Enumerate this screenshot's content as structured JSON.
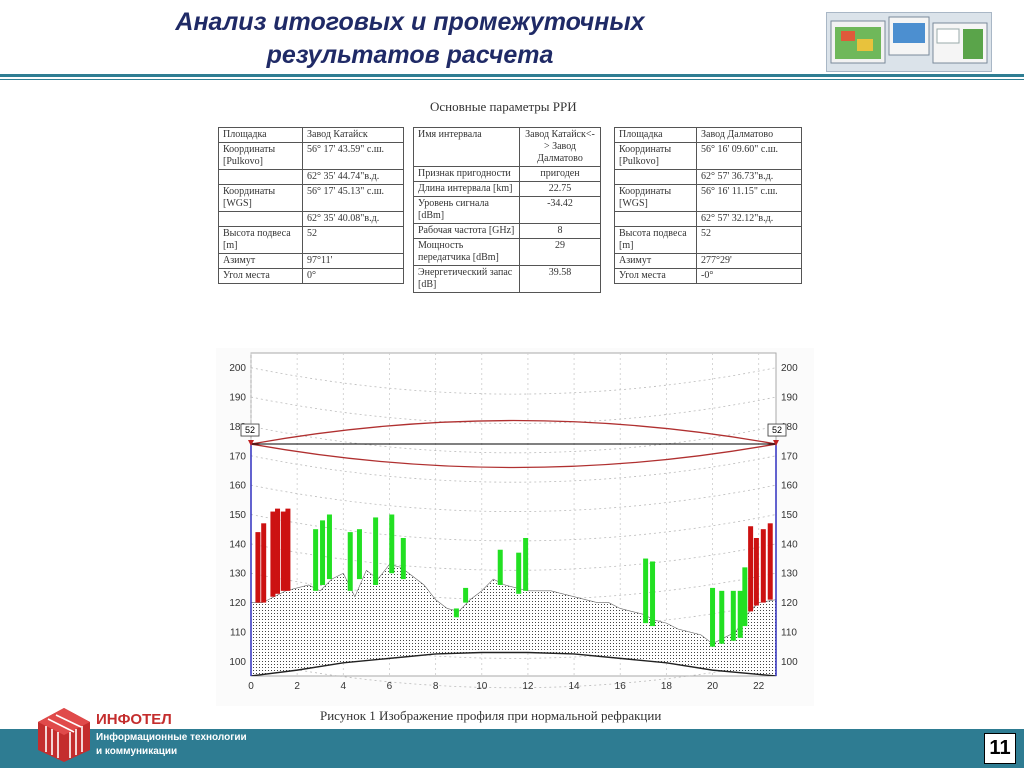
{
  "slide": {
    "title_line1": "Анализ итоговых и промежуточных",
    "title_line2": "результатов расчета",
    "page_number": "11"
  },
  "params": {
    "caption": "Основные параметры РРИ",
    "left": [
      [
        "Площадка",
        "Завод Катайск"
      ],
      [
        "Координаты [Pulkovo]",
        "56° 17' 43.59\" с.ш."
      ],
      [
        "",
        "62° 35' 44.74\"в.д."
      ],
      [
        "Координаты [WGS]",
        "56° 17' 45.13\" с.ш."
      ],
      [
        "",
        "62° 35' 40.08\"в.д."
      ],
      [
        "Высота подвеса [m]",
        "52"
      ],
      [
        "Азимут",
        "97°11'"
      ],
      [
        "Угол места",
        "0°"
      ]
    ],
    "middle": [
      [
        "Имя интервала",
        "Завод Катайск<-> Завод Далматово"
      ],
      [
        "Признак пригодности",
        "пригоден"
      ],
      [
        "Длина интервала [km]",
        "22.75"
      ],
      [
        "Уровень сигнала [dBm]",
        "-34.42"
      ],
      [
        "Рабочая частота [GHz]",
        "8"
      ],
      [
        "Мощность передатчика [dBm]",
        "29"
      ],
      [
        "Энергетический запас [dB]",
        "39.58"
      ]
    ],
    "right": [
      [
        "Площадка",
        "Завод Далматово"
      ],
      [
        "Координаты [Pulkovo]",
        "56° 16' 09.60\" с.ш."
      ],
      [
        "",
        "62° 57' 36.73\"в.д."
      ],
      [
        "Координаты [WGS]",
        "56° 16' 11.15\" с.ш."
      ],
      [
        "",
        "62° 57' 32.12\"в.д."
      ],
      [
        "Высота подвеса [m]",
        "52"
      ],
      [
        "Азимут",
        "277°29'"
      ],
      [
        "Угол места",
        "-0°"
      ]
    ]
  },
  "figure": {
    "caption": "Рисунок 1 Изображение профиля при нормальной рефракции"
  },
  "brand": {
    "name": "ИНФОТЕЛ",
    "tagline1": "Информационные технологии",
    "tagline2": "и коммуникации"
  },
  "colors": {
    "title": "#1f2a66",
    "accent": "#2e7c92",
    "brand_red": "#c42d2d",
    "vegetation_green": "#22e022",
    "building_red": "#cc1111",
    "fresnel_line": "#b03030"
  },
  "chart_data": {
    "type": "area",
    "x_ticks": [
      0,
      2,
      4,
      6,
      8,
      10,
      12,
      14,
      16,
      18,
      20,
      22
    ],
    "y_ticks": [
      100,
      110,
      120,
      130,
      140,
      150,
      160,
      170,
      180,
      190,
      200
    ],
    "xlim": [
      0,
      22.75
    ],
    "ylim": [
      95,
      205
    ],
    "antenna_height_labels": [
      "52",
      "52"
    ],
    "link_height": 174,
    "fresnel_top_mid": 182,
    "fresnel_bottom_mid": 166,
    "terrain": [
      [
        0,
        120
      ],
      [
        0.5,
        120
      ],
      [
        1,
        122
      ],
      [
        1.5,
        124
      ],
      [
        2,
        125
      ],
      [
        2.5,
        126
      ],
      [
        3,
        124
      ],
      [
        3.5,
        128
      ],
      [
        4,
        130
      ],
      [
        4.5,
        122
      ],
      [
        5,
        131
      ],
      [
        5.5,
        128
      ],
      [
        6,
        133
      ],
      [
        6.5,
        132
      ],
      [
        7,
        129
      ],
      [
        7.5,
        126
      ],
      [
        8,
        121
      ],
      [
        8.5,
        118
      ],
      [
        9,
        117
      ],
      [
        9.5,
        121
      ],
      [
        10,
        124
      ],
      [
        10.5,
        128
      ],
      [
        11,
        126
      ],
      [
        11.5,
        125
      ],
      [
        12,
        124
      ],
      [
        12.5,
        124
      ],
      [
        13,
        124
      ],
      [
        13.5,
        123
      ],
      [
        14,
        122
      ],
      [
        14.5,
        121
      ],
      [
        15,
        120
      ],
      [
        15.5,
        120
      ],
      [
        16,
        118
      ],
      [
        16.5,
        117
      ],
      [
        17,
        116
      ],
      [
        17.5,
        114
      ],
      [
        18,
        113
      ],
      [
        18.5,
        111
      ],
      [
        19,
        110
      ],
      [
        19.5,
        109
      ],
      [
        20,
        106
      ],
      [
        20.5,
        108
      ],
      [
        21,
        110
      ],
      [
        21.5,
        116
      ],
      [
        22,
        120
      ],
      [
        22.75,
        121
      ]
    ],
    "earth_bulge": [
      [
        0,
        95
      ],
      [
        2,
        97
      ],
      [
        4,
        99.5
      ],
      [
        6,
        101
      ],
      [
        8,
        102.5
      ],
      [
        10,
        103
      ],
      [
        12,
        103
      ],
      [
        14,
        102.5
      ],
      [
        16,
        101
      ],
      [
        18,
        99.5
      ],
      [
        20,
        97
      ],
      [
        22.75,
        95
      ]
    ],
    "vegetation": [
      [
        2.8,
        124,
        145
      ],
      [
        3.1,
        126,
        148
      ],
      [
        3.4,
        128,
        150
      ],
      [
        4.3,
        124,
        144
      ],
      [
        4.7,
        128,
        145
      ],
      [
        5.4,
        126,
        149
      ],
      [
        6.1,
        130,
        150
      ],
      [
        6.6,
        128,
        142
      ],
      [
        8.9,
        115,
        118
      ],
      [
        9.3,
        120,
        125
      ],
      [
        10.8,
        126,
        138
      ],
      [
        11.6,
        123,
        137
      ],
      [
        11.9,
        124,
        142
      ],
      [
        17.1,
        113,
        135
      ],
      [
        17.4,
        112,
        134
      ],
      [
        20.0,
        105,
        125
      ],
      [
        20.4,
        106,
        124
      ],
      [
        20.9,
        107,
        124
      ],
      [
        21.2,
        108,
        124
      ],
      [
        21.4,
        112,
        132
      ]
    ],
    "buildings": [
      [
        0.3,
        120,
        144
      ],
      [
        0.55,
        120,
        147
      ],
      [
        0.95,
        122,
        151
      ],
      [
        1.15,
        123,
        152
      ],
      [
        1.4,
        124,
        151
      ],
      [
        1.6,
        124,
        152
      ],
      [
        21.65,
        117,
        146
      ],
      [
        21.9,
        119,
        142
      ],
      [
        22.2,
        120,
        145
      ],
      [
        22.5,
        121,
        147
      ]
    ]
  }
}
